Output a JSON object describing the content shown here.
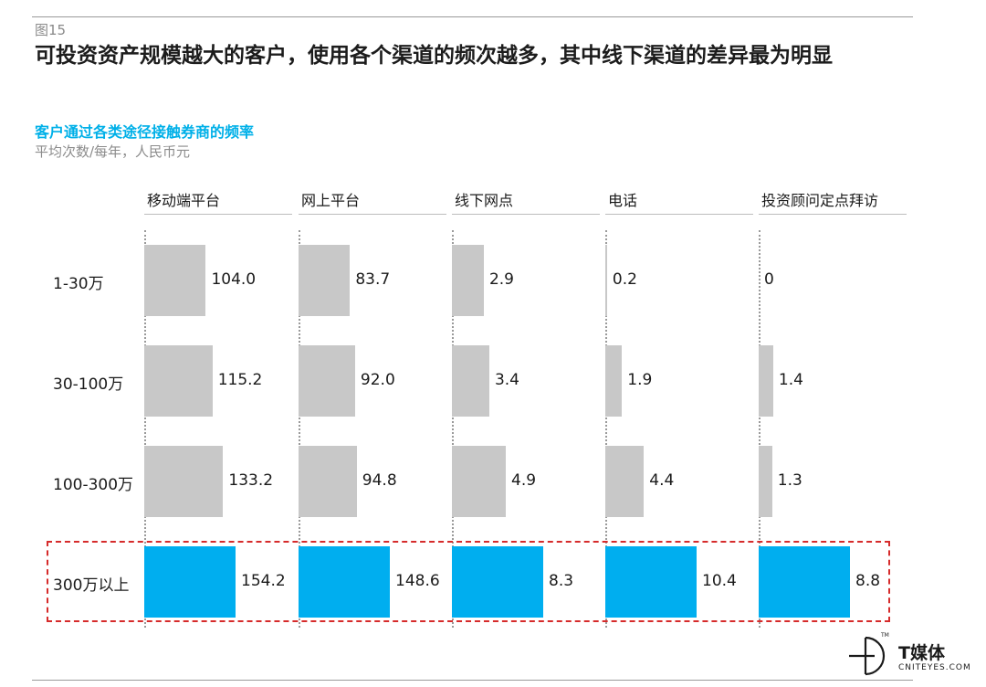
{
  "header": {
    "figure_number": "图15",
    "title": "可投资资产规模越大的客户，使用各个渠道的频次越多，其中线下渠道的差异最为明显"
  },
  "chart_data": {
    "type": "bar",
    "orientation": "horizontal",
    "layout": "small-multiples",
    "title": "客户通过各类途径接触券商的频率",
    "subtitle": "平均次数/每年，人民币元",
    "categories": [
      "1-30万",
      "30-100万",
      "100-300万",
      "300万以上"
    ],
    "highlighted_category": "300万以上",
    "colors": {
      "default": "#c8c8c8",
      "highlight": "#00aeef",
      "highlight_border": "#d62b2b"
    },
    "series": [
      {
        "name": "移动端平台",
        "values": [
          104.0,
          115.2,
          133.2,
          154.2
        ],
        "labels": [
          "104.0",
          "115.2",
          "133.2",
          "154.2"
        ]
      },
      {
        "name": "网上平台",
        "values": [
          83.7,
          92.0,
          94.8,
          148.6
        ],
        "labels": [
          "83.7",
          "92.0",
          "94.8",
          "148.6"
        ]
      },
      {
        "name": "线下网点",
        "values": [
          2.9,
          3.4,
          4.9,
          8.3
        ],
        "labels": [
          "2.9",
          "3.4",
          "4.9",
          "8.3"
        ]
      },
      {
        "name": "电话",
        "values": [
          0.2,
          1.9,
          4.4,
          10.4
        ],
        "labels": [
          "0.2",
          "1.9",
          "4.4",
          "10.4"
        ]
      },
      {
        "name": "投资顾问定点拜访",
        "values": [
          0,
          1.4,
          1.3,
          8.8
        ],
        "labels": [
          "0",
          "1.4",
          "1.3",
          "8.8"
        ]
      }
    ]
  },
  "logo": {
    "name": "T媒体",
    "domain": "CNITEYES.COM",
    "tm": "TM"
  }
}
